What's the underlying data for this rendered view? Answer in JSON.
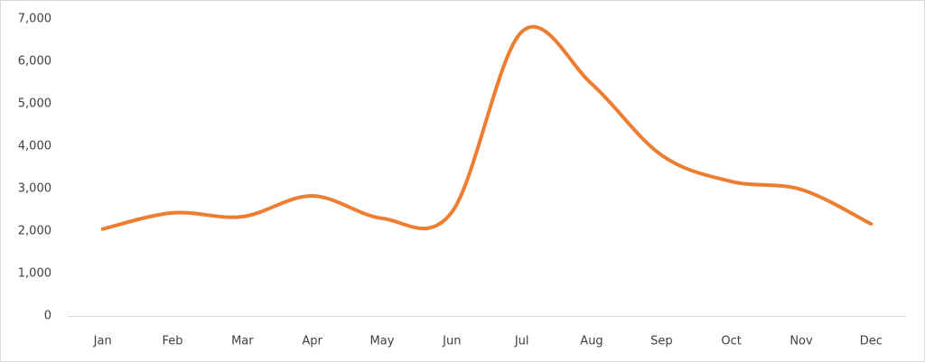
{
  "chart_data": {
    "type": "line",
    "smooth": true,
    "grid": false,
    "categories": [
      "Jan",
      "Feb",
      "Mar",
      "Apr",
      "May",
      "Jun",
      "Jul",
      "Aug",
      "Sep",
      "Oct",
      "Nov",
      "Dec"
    ],
    "series": [
      {
        "color": "#ed7d31",
        "values": [
          2050,
          2430,
          2340,
          2830,
          2300,
          2450,
          6700,
          5470,
          3790,
          3170,
          2980,
          2170
        ]
      }
    ],
    "ylim": [
      0,
      7000
    ],
    "yticks": [
      0,
      {
        "value": 1000,
        "label": "1,000"
      },
      {
        "value": 2000,
        "label": "2,000"
      },
      {
        "value": 3000,
        "label": "3,000"
      },
      {
        "value": 4000,
        "label": "4,000"
      },
      {
        "value": 5000,
        "label": "5,000"
      },
      {
        "value": 6000,
        "label": "6,000"
      },
      {
        "value": 7000,
        "label": "7,000"
      }
    ]
  }
}
